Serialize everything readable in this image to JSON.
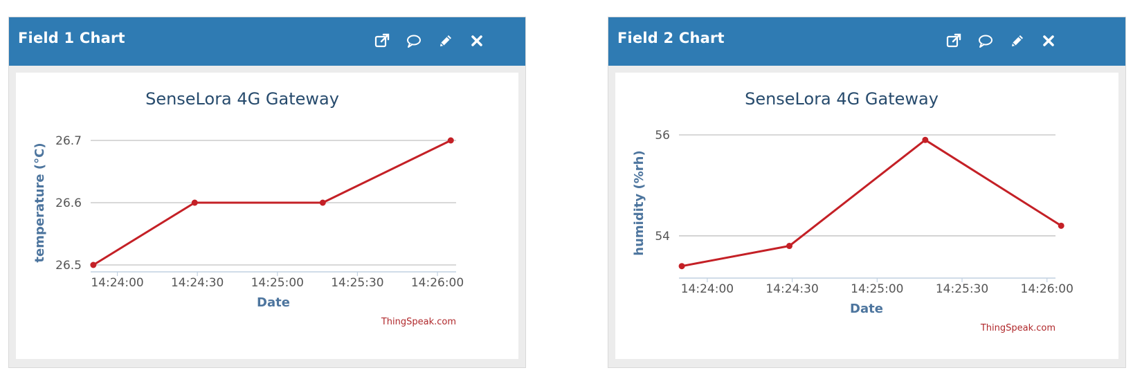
{
  "panels": [
    {
      "title": "Field 1 Chart",
      "actions": [
        {
          "name": "open-external",
          "icon": "external-link-icon"
        },
        {
          "name": "comment",
          "icon": "comment-icon"
        },
        {
          "name": "edit",
          "icon": "pencil-icon"
        },
        {
          "name": "close",
          "icon": "close-icon"
        }
      ]
    },
    {
      "title": "Field 2 Chart",
      "actions": [
        {
          "name": "open-external",
          "icon": "external-link-icon"
        },
        {
          "name": "comment",
          "icon": "comment-icon"
        },
        {
          "name": "edit",
          "icon": "pencil-icon"
        },
        {
          "name": "close",
          "icon": "close-icon"
        }
      ]
    }
  ],
  "colors": {
    "header": "#2f7bb3",
    "series": "#c42026",
    "credit": "#b0282b",
    "title": "#274b6d",
    "axis_title": "#4d759e",
    "grid": "#c0c0c0"
  },
  "chart_data": [
    {
      "type": "line",
      "title": "SenseLora 4G Gateway",
      "xlabel": "Date",
      "ylabel": "temperature  (°C)",
      "credit": "ThingSpeak.com",
      "x_tick_labels": [
        "14:24:00",
        "14:24:30",
        "14:25:00",
        "14:25:30",
        "14:26:00"
      ],
      "y_ticks": [
        "26.5",
        "26.6",
        "26.7"
      ],
      "ylim": [
        26.5,
        26.7
      ],
      "xlim": [
        "14:23:50",
        "14:26:07"
      ],
      "grid": true,
      "series": [
        {
          "x": [
            "14:23:51",
            "14:24:29",
            "14:25:17",
            "14:26:05"
          ],
          "y": [
            26.5,
            26.6,
            26.6,
            26.7
          ]
        }
      ]
    },
    {
      "type": "line",
      "title": "SenseLora 4G Gateway",
      "xlabel": "Date",
      "ylabel": "humidity  (%rh)",
      "credit": "ThingSpeak.com",
      "x_tick_labels": [
        "14:24:00",
        "14:24:30",
        "14:25:00",
        "14:25:30",
        "14:26:00"
      ],
      "y_ticks": [
        "54",
        "56"
      ],
      "ylim": [
        53.3,
        56
      ],
      "xlim": [
        "14:23:50",
        "14:26:03"
      ],
      "grid": true,
      "series": [
        {
          "x": [
            "14:23:51",
            "14:24:29",
            "14:25:17",
            "14:26:05"
          ],
          "y": [
            53.4,
            53.8,
            55.9,
            54.2
          ]
        }
      ]
    }
  ]
}
